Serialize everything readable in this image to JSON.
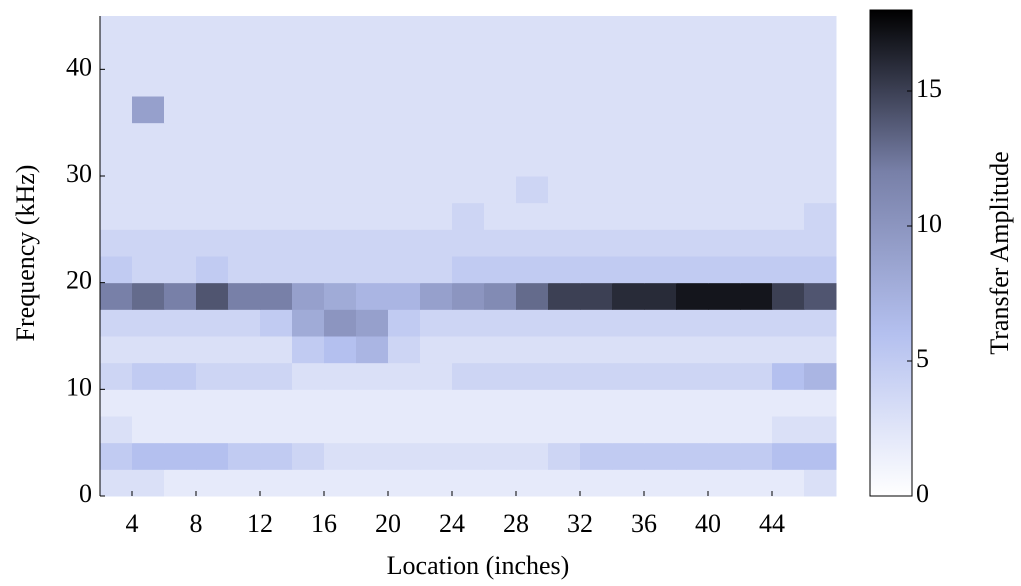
{
  "chart_data": {
    "type": "heatmap",
    "x_label": "Location (inches)",
    "y_label": "Frequency (kHz)",
    "colorbar_label": "Transfer Amplitude",
    "xbins": [
      2,
      4,
      6,
      8,
      10,
      12,
      14,
      16,
      18,
      20,
      22,
      24,
      26,
      28,
      30,
      32,
      34,
      36,
      38,
      40,
      42,
      44,
      46,
      48
    ],
    "ybins": [
      0,
      2.5,
      5,
      7.5,
      10,
      12.5,
      15,
      17.5,
      20,
      22.5,
      25,
      27.5,
      30,
      32.5,
      35,
      37.5,
      40,
      42.5,
      45
    ],
    "z": [
      [
        3,
        3,
        2,
        2,
        2,
        2,
        2,
        2,
        2,
        2,
        2,
        2,
        2,
        2,
        2,
        2,
        2,
        2,
        2,
        2,
        2,
        2,
        3
      ],
      [
        5,
        6,
        6,
        6,
        5,
        5,
        4,
        3,
        3,
        3,
        3,
        3,
        3,
        3,
        4,
        5,
        5,
        5,
        5,
        5,
        5,
        6,
        6
      ],
      [
        3,
        2,
        2,
        2,
        2,
        2,
        2,
        2,
        2,
        2,
        2,
        2,
        2,
        2,
        2,
        2,
        2,
        2,
        2,
        2,
        2,
        3,
        3
      ],
      [
        2,
        2,
        2,
        2,
        2,
        2,
        2,
        2,
        2,
        2,
        2,
        2,
        2,
        2,
        2,
        2,
        2,
        2,
        2,
        2,
        2,
        2,
        2
      ],
      [
        4,
        5,
        5,
        4,
        4,
        4,
        3,
        3,
        3,
        3,
        3,
        4,
        4,
        4,
        4,
        4,
        4,
        4,
        4,
        4,
        4,
        6,
        7
      ],
      [
        3,
        3,
        3,
        3,
        3,
        3,
        5,
        6,
        7,
        4,
        3,
        3,
        3,
        3,
        3,
        3,
        3,
        3,
        3,
        3,
        3,
        3,
        3
      ],
      [
        4,
        4,
        4,
        4,
        4,
        5,
        8,
        10,
        9,
        5,
        4,
        4,
        4,
        4,
        4,
        4,
        4,
        4,
        4,
        4,
        4,
        4,
        4
      ],
      [
        12,
        13,
        12,
        14,
        12,
        12,
        9,
        8,
        7,
        7,
        9,
        10,
        11,
        13,
        15,
        15,
        16,
        16,
        17,
        17,
        17,
        15,
        14
      ],
      [
        5,
        4,
        4,
        5,
        4,
        4,
        4,
        4,
        4,
        4,
        4,
        5,
        5,
        5,
        5,
        5,
        5,
        5,
        5,
        5,
        5,
        5,
        5
      ],
      [
        4,
        4,
        4,
        4,
        4,
        4,
        4,
        4,
        4,
        4,
        4,
        4,
        4,
        4,
        4,
        4,
        4,
        4,
        4,
        4,
        4,
        4,
        4
      ],
      [
        3,
        3,
        3,
        3,
        3,
        3,
        3,
        3,
        3,
        3,
        3,
        4,
        3,
        3,
        3,
        3,
        3,
        3,
        3,
        3,
        3,
        3,
        4
      ],
      [
        3,
        3,
        3,
        3,
        3,
        3,
        3,
        3,
        3,
        3,
        3,
        3,
        3,
        4,
        3,
        3,
        3,
        3,
        3,
        3,
        3,
        3,
        3
      ],
      [
        3,
        3,
        3,
        3,
        3,
        3,
        3,
        3,
        3,
        3,
        3,
        3,
        3,
        3,
        3,
        3,
        3,
        3,
        3,
        3,
        3,
        3,
        3
      ],
      [
        3,
        3,
        3,
        3,
        3,
        3,
        3,
        3,
        3,
        3,
        3,
        3,
        3,
        3,
        3,
        3,
        3,
        3,
        3,
        3,
        3,
        3,
        3
      ],
      [
        3,
        9,
        3,
        3,
        3,
        3,
        3,
        3,
        3,
        3,
        3,
        3,
        3,
        3,
        3,
        3,
        3,
        3,
        3,
        3,
        3,
        3,
        3
      ],
      [
        3,
        3,
        3,
        3,
        3,
        3,
        3,
        3,
        3,
        3,
        3,
        3,
        3,
        3,
        3,
        3,
        3,
        3,
        3,
        3,
        3,
        3,
        3
      ],
      [
        3,
        3,
        3,
        3,
        3,
        3,
        3,
        3,
        3,
        3,
        3,
        3,
        3,
        3,
        3,
        3,
        3,
        3,
        3,
        3,
        3,
        3,
        3
      ],
      [
        3,
        3,
        3,
        3,
        3,
        3,
        3,
        3,
        3,
        3,
        3,
        3,
        3,
        3,
        3,
        3,
        3,
        3,
        3,
        3,
        3,
        3,
        3
      ]
    ],
    "xlim": [
      2,
      48
    ],
    "ylim": [
      0,
      45
    ],
    "clim": [
      0,
      18
    ],
    "xticks": [
      4,
      8,
      12,
      16,
      20,
      24,
      28,
      32,
      36,
      40,
      44
    ],
    "yticks": [
      0,
      10,
      20,
      30,
      40
    ],
    "cticks": [
      0,
      5,
      10,
      15
    ],
    "colormap": [
      "#ffffff",
      "#b4c0ef",
      "#7880a8",
      "#000000"
    ]
  }
}
